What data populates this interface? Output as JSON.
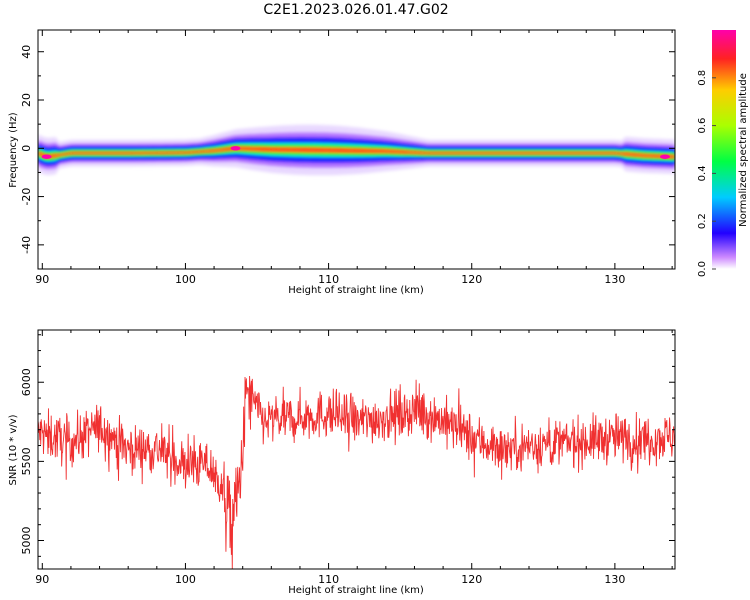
{
  "figure": {
    "title": "C2E1.2023.026.01.47.G02"
  },
  "chart_data": [
    {
      "type": "heatmap",
      "xlabel": "Height of straight line (km)",
      "ylabel": "Frequency (Hz)",
      "xlim": [
        89.7,
        134.2
      ],
      "ylim": [
        -50,
        49
      ],
      "xticks": [
        90,
        100,
        110,
        120,
        130
      ],
      "yticks": [
        -40,
        -20,
        0,
        20,
        40
      ],
      "colorbar": {
        "label": "Normalized spectral amplitude",
        "range": [
          0,
          1
        ],
        "ticks": [
          0.0,
          0.2,
          0.4,
          0.6,
          0.8
        ],
        "colormap": "rainbow"
      },
      "ridge": [
        {
          "x": 89.7,
          "f": -2.0
        },
        {
          "x": 90.3,
          "f": -3.5
        },
        {
          "x": 91.0,
          "f": -3.0
        },
        {
          "x": 92.0,
          "f": -2.0
        },
        {
          "x": 96.0,
          "f": -2.0
        },
        {
          "x": 100.0,
          "f": -1.8
        },
        {
          "x": 102.0,
          "f": -1.0
        },
        {
          "x": 103.5,
          "f": 0.0
        },
        {
          "x": 106.0,
          "f": -0.5
        },
        {
          "x": 110.0,
          "f": -0.8
        },
        {
          "x": 114.0,
          "f": -1.2
        },
        {
          "x": 117.0,
          "f": -2.0
        },
        {
          "x": 125.0,
          "f": -2.0
        },
        {
          "x": 130.0,
          "f": -2.0
        },
        {
          "x": 132.0,
          "f": -3.0
        },
        {
          "x": 134.2,
          "f": -3.5
        }
      ]
    },
    {
      "type": "line",
      "xlabel": "Height of straight line (km)",
      "ylabel": "SNR (10 * v/v)",
      "xlim": [
        89.7,
        134.2
      ],
      "ylim": [
        4820,
        6330
      ],
      "xticks": [
        90,
        100,
        110,
        120,
        130
      ],
      "yticks": [
        5000,
        5500,
        6000
      ],
      "color": "#f03030",
      "trend": [
        {
          "x": 89.7,
          "y": 5680
        },
        {
          "x": 92.0,
          "y": 5620
        },
        {
          "x": 94.0,
          "y": 5720
        },
        {
          "x": 96.0,
          "y": 5580
        },
        {
          "x": 98.0,
          "y": 5580
        },
        {
          "x": 100.0,
          "y": 5470
        },
        {
          "x": 101.5,
          "y": 5480
        },
        {
          "x": 102.5,
          "y": 5350
        },
        {
          "x": 103.2,
          "y": 5120
        },
        {
          "x": 103.8,
          "y": 5350
        },
        {
          "x": 104.3,
          "y": 5950
        },
        {
          "x": 105.5,
          "y": 5750
        },
        {
          "x": 108.0,
          "y": 5780
        },
        {
          "x": 110.0,
          "y": 5800
        },
        {
          "x": 112.0,
          "y": 5750
        },
        {
          "x": 114.0,
          "y": 5780
        },
        {
          "x": 116.0,
          "y": 5820
        },
        {
          "x": 118.0,
          "y": 5760
        },
        {
          "x": 120.0,
          "y": 5650
        },
        {
          "x": 122.0,
          "y": 5580
        },
        {
          "x": 124.0,
          "y": 5600
        },
        {
          "x": 127.0,
          "y": 5620
        },
        {
          "x": 130.0,
          "y": 5650
        },
        {
          "x": 132.0,
          "y": 5640
        },
        {
          "x": 134.2,
          "y": 5660
        }
      ],
      "noise_amplitude": 140
    }
  ]
}
